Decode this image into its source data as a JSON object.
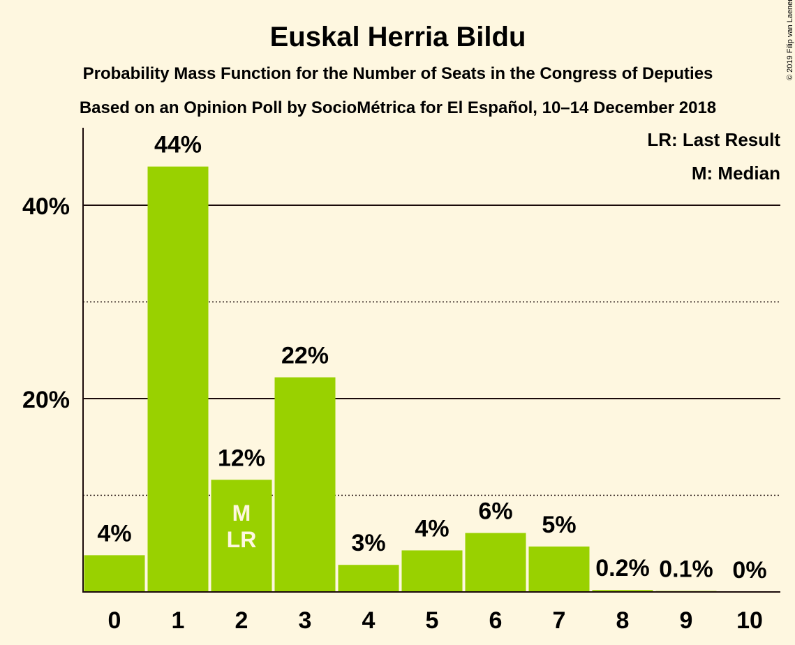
{
  "chart_data": {
    "type": "bar",
    "title": "Euskal Herria Bildu",
    "subtitle_lines": [
      "Probability Mass Function for the Number of Seats in the Congress of Deputies",
      "Based on an Opinion Poll by SocioMétrica for El Español, 10–14 December 2018"
    ],
    "categories": [
      "0",
      "1",
      "2",
      "3",
      "4",
      "5",
      "6",
      "7",
      "8",
      "9",
      "10"
    ],
    "values": [
      3.8,
      44.0,
      11.6,
      22.2,
      2.8,
      4.3,
      6.1,
      4.7,
      0.2,
      0.1,
      0
    ],
    "value_labels": [
      "4%",
      "44%",
      "12%",
      "22%",
      "3%",
      "4%",
      "6%",
      "5%",
      "0.2%",
      "0.1%",
      "0%"
    ],
    "y_ticks": [
      20,
      40
    ],
    "y_tick_labels": [
      "20%",
      "40%"
    ],
    "ylim": [
      0,
      48
    ],
    "grid": {
      "solid_at": [
        20,
        40
      ],
      "dotted_at": [
        10,
        30
      ]
    },
    "bar_color": "#99d100",
    "median_seat": "2",
    "last_result_seat": "2",
    "markers": {
      "median": "M",
      "last_result": "LR"
    },
    "legend": [
      "LR: Last Result",
      "M: Median"
    ],
    "legend_position": "top-right"
  },
  "copyright": "© 2019 Filip van Laenen"
}
